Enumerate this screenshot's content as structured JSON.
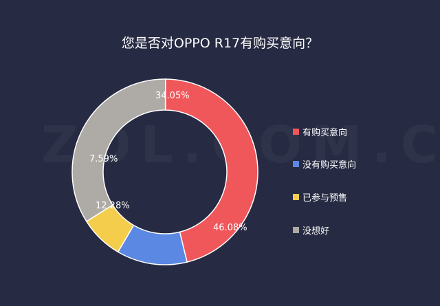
{
  "chart_data": {
    "type": "pie",
    "title": "您是否对OPPO R17有购买意向？",
    "categories": [
      "有购买意向",
      "没有购买意向",
      "已参与预售",
      "没想好"
    ],
    "values": [
      46.08,
      12.28,
      7.59,
      34.05
    ],
    "labels": [
      "46.08%",
      "12.28%",
      "7.59%",
      "34.05%"
    ],
    "colors": [
      "#f0575b",
      "#5b88e2",
      "#f5cd4d",
      "#aeaaa6"
    ],
    "legend_position": "right"
  },
  "watermark": "ZOL.COM.CN"
}
